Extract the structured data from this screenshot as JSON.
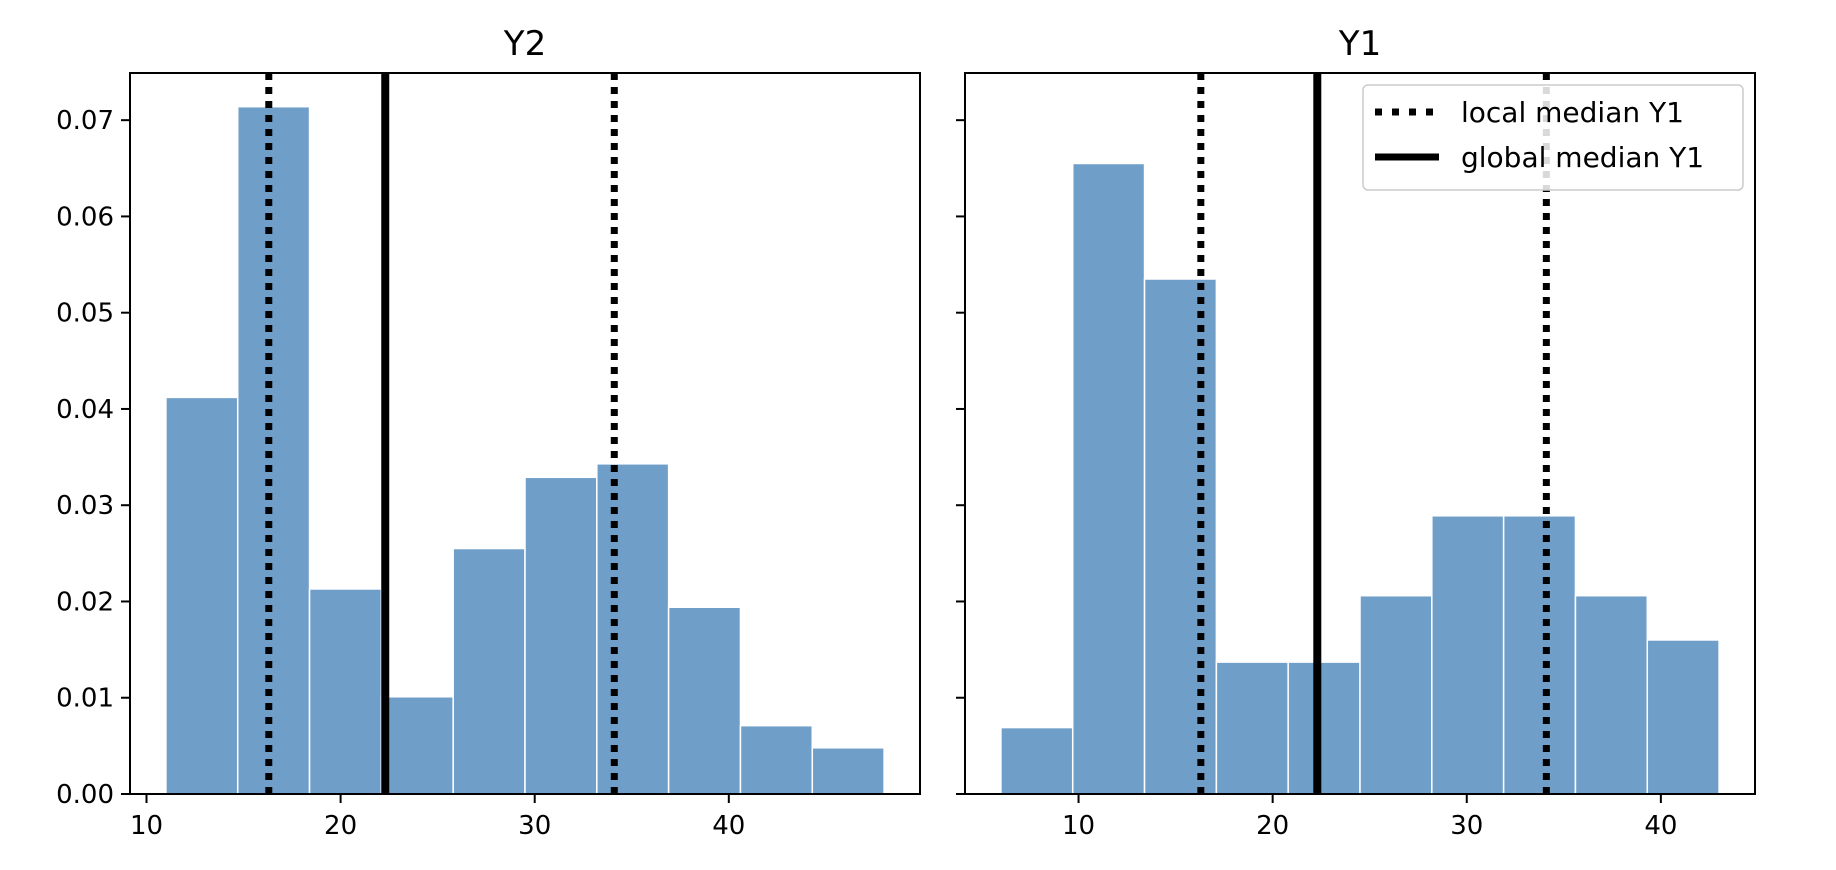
{
  "chart_data": [
    {
      "type": "bar",
      "title": "Y2",
      "xlabel": "",
      "ylabel": "",
      "xlim": [
        9.15,
        49.85
      ],
      "ylim": [
        0,
        0.0749
      ],
      "xticks": [
        10,
        20,
        30,
        40
      ],
      "yticks": [
        "0.00",
        "0.01",
        "0.02",
        "0.03",
        "0.04",
        "0.05",
        "0.06",
        "0.07"
      ],
      "bin_edges": [
        11.0,
        14.7,
        18.4,
        22.1,
        25.8,
        29.5,
        33.2,
        36.9,
        40.6,
        44.3,
        48.0
      ],
      "values": [
        0.0412,
        0.0714,
        0.0213,
        0.0101,
        0.0255,
        0.0329,
        0.0343,
        0.0194,
        0.0071,
        0.0048
      ],
      "local_medians": [
        16.3,
        34.1
      ],
      "global_median": 22.3,
      "bar_color": "#6f9fc9",
      "show_yticklabels": true
    },
    {
      "type": "bar",
      "title": "Y1",
      "xlabel": "",
      "ylabel": "",
      "xlim": [
        4.15,
        44.85
      ],
      "ylim": [
        0,
        0.0749
      ],
      "xticks": [
        10,
        20,
        30,
        40
      ],
      "bin_edges": [
        6.0,
        9.7,
        13.4,
        17.1,
        20.8,
        24.5,
        28.2,
        31.9,
        35.6,
        39.3,
        43.0
      ],
      "values": [
        0.0069,
        0.0655,
        0.0535,
        0.0137,
        0.0137,
        0.0206,
        0.0289,
        0.0289,
        0.0206,
        0.016
      ],
      "local_medians": [
        16.3,
        34.1
      ],
      "global_median": 22.3,
      "bar_color": "#6f9fc9",
      "show_yticklabels": false,
      "legend": {
        "placement": "top-right",
        "entries": [
          {
            "label": "local median Y1",
            "style": "dotted"
          },
          {
            "label": "global median Y1",
            "style": "solid"
          }
        ]
      }
    }
  ]
}
